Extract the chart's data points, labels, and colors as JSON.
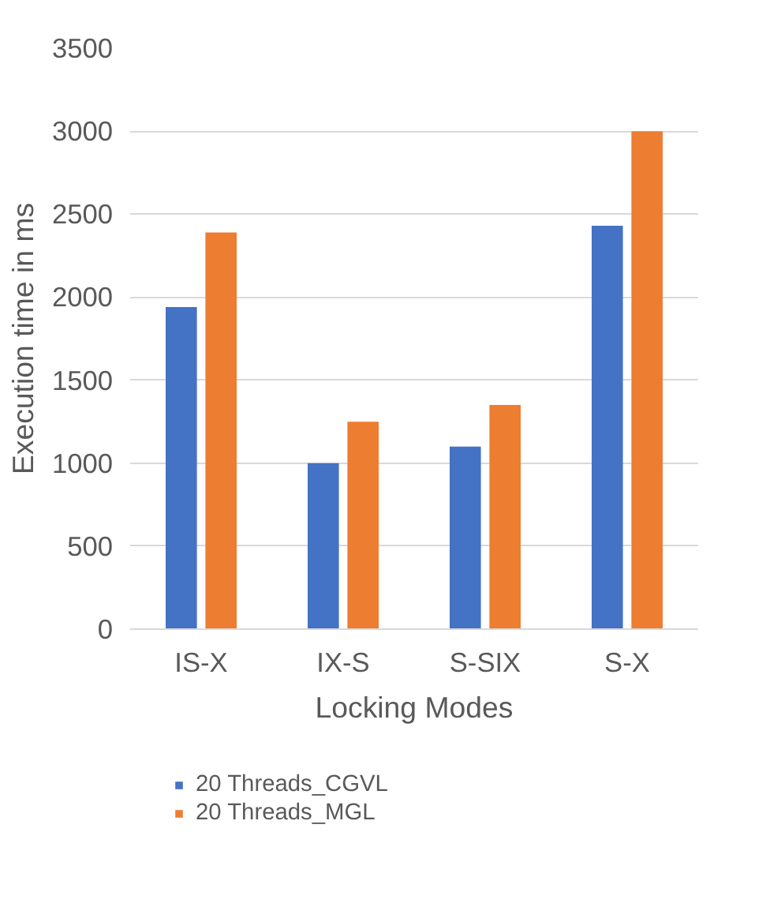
{
  "chart_data": {
    "type": "bar",
    "xlabel": "Locking Modes",
    "ylabel": "Execution time in ms",
    "categories": [
      "IS-X",
      "IX-S",
      "S-SIX",
      "S-X"
    ],
    "series": [
      {
        "name": "20 Threads_CGVL",
        "color": "#4472c4",
        "values": [
          1940,
          1000,
          1100,
          2430
        ]
      },
      {
        "name": "20 Threads_MGL",
        "color": "#ed7d31",
        "values": [
          2390,
          1250,
          1350,
          3000
        ]
      }
    ],
    "ylim": [
      0,
      3500
    ],
    "yticks": [
      0,
      500,
      1000,
      1500,
      2000,
      2500,
      3000,
      3500
    ],
    "grid": "y",
    "legend": "bottom"
  }
}
